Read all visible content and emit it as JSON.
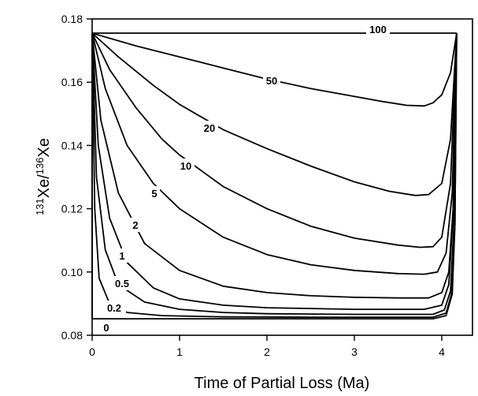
{
  "chart_data": {
    "type": "line",
    "title": "",
    "xlabel": "Time of Partial Loss (Ma)",
    "ylabel": {
      "pre": "131",
      "a": "Xe/",
      "mid": "136",
      "b": "Xe"
    },
    "xlim": [
      0,
      4.2
    ],
    "ylim": [
      0.08,
      0.18
    ],
    "xticks": [
      "0",
      "1",
      "2",
      "3",
      "4"
    ],
    "yticks": [
      "0.08",
      "0.10",
      "0.12",
      "0.14",
      "0.16",
      "0.18"
    ],
    "grid": false,
    "series": [
      {
        "name": "100",
        "x": [
          0,
          0.5,
          1.0,
          1.5,
          2.0,
          2.5,
          3.0,
          3.5,
          4.0,
          4.17
        ],
        "y": [
          0.1755,
          0.1755,
          0.1755,
          0.1755,
          0.1755,
          0.1755,
          0.1755,
          0.1755,
          0.1755,
          0.1755
        ]
      },
      {
        "name": "50",
        "x": [
          0,
          0.5,
          1.0,
          1.5,
          2.0,
          2.5,
          3.0,
          3.3,
          3.6,
          3.8,
          3.9,
          4.0,
          4.1,
          4.17
        ],
        "y": [
          0.1755,
          0.1715,
          0.168,
          0.1645,
          0.161,
          0.158,
          0.1555,
          0.154,
          0.1527,
          0.1525,
          0.1535,
          0.156,
          0.163,
          0.1755
        ]
      },
      {
        "name": "20",
        "x": [
          0,
          0.3,
          0.7,
          1.0,
          1.5,
          2.0,
          2.5,
          3.0,
          3.4,
          3.7,
          3.85,
          4.0,
          4.1,
          4.17
        ],
        "y": [
          0.1755,
          0.168,
          0.159,
          0.153,
          0.145,
          0.139,
          0.1335,
          0.1285,
          0.1255,
          0.1242,
          0.1245,
          0.128,
          0.142,
          0.1755
        ]
      },
      {
        "name": "10",
        "x": [
          0,
          0.2,
          0.5,
          0.8,
          1.0,
          1.5,
          2.0,
          2.5,
          3.0,
          3.5,
          3.75,
          3.9,
          4.0,
          4.1,
          4.17
        ],
        "y": [
          0.1755,
          0.164,
          0.152,
          0.142,
          0.137,
          0.127,
          0.12,
          0.1145,
          0.1107,
          0.1085,
          0.1078,
          0.108,
          0.111,
          0.128,
          0.1755
        ]
      },
      {
        "name": "5",
        "x": [
          0,
          0.15,
          0.4,
          0.7,
          1.0,
          1.5,
          2.0,
          2.5,
          3.0,
          3.5,
          3.8,
          3.95,
          4.05,
          4.12,
          4.17
        ],
        "y": [
          0.1755,
          0.158,
          0.14,
          0.128,
          0.12,
          0.111,
          0.1055,
          0.1023,
          0.1005,
          0.0995,
          0.0993,
          0.1,
          0.106,
          0.125,
          0.1755
        ]
      },
      {
        "name": "2",
        "x": [
          0,
          0.1,
          0.3,
          0.6,
          1.0,
          1.5,
          2.0,
          2.5,
          3.0,
          3.5,
          3.85,
          4.0,
          4.08,
          4.13,
          4.17
        ],
        "y": [
          0.1755,
          0.148,
          0.125,
          0.109,
          0.1005,
          0.0955,
          0.0935,
          0.0925,
          0.092,
          0.0918,
          0.0918,
          0.0935,
          0.1,
          0.12,
          0.1755
        ]
      },
      {
        "name": "1",
        "x": [
          0,
          0.07,
          0.2,
          0.4,
          0.7,
          1.0,
          1.5,
          2.0,
          3.0,
          3.8,
          4.0,
          4.08,
          4.13,
          4.17
        ],
        "y": [
          0.1755,
          0.14,
          0.117,
          0.103,
          0.095,
          0.0915,
          0.0895,
          0.0887,
          0.0882,
          0.0882,
          0.0895,
          0.096,
          0.118,
          0.1755
        ]
      },
      {
        "name": "0.5",
        "x": [
          0,
          0.05,
          0.15,
          0.3,
          0.6,
          1.0,
          1.5,
          2.0,
          3.0,
          3.9,
          4.03,
          4.1,
          4.14,
          4.17
        ],
        "y": [
          0.1755,
          0.13,
          0.107,
          0.096,
          0.0905,
          0.0882,
          0.0872,
          0.0868,
          0.0866,
          0.0866,
          0.088,
          0.094,
          0.115,
          0.1755
        ]
      },
      {
        "name": "0.2",
        "x": [
          0,
          0.03,
          0.08,
          0.2,
          0.4,
          0.8,
          1.5,
          2.5,
          3.9,
          4.05,
          4.11,
          4.15,
          4.17
        ],
        "y": [
          0.1755,
          0.12,
          0.098,
          0.09,
          0.0872,
          0.0862,
          0.0858,
          0.0857,
          0.0857,
          0.087,
          0.093,
          0.115,
          0.1755
        ]
      },
      {
        "name": "0",
        "x": [
          0,
          0,
          0.5,
          1.0,
          2.0,
          3.0,
          3.9,
          4.05,
          4.12,
          4.15,
          4.17
        ],
        "y": [
          0.1755,
          0.0852,
          0.0852,
          0.0852,
          0.0852,
          0.0852,
          0.0852,
          0.0862,
          0.093,
          0.115,
          0.1755
        ]
      }
    ],
    "annotations": [
      "100",
      "50",
      "20",
      "10",
      "5",
      "2",
      "1",
      "0.5",
      "0.2",
      "0"
    ]
  }
}
